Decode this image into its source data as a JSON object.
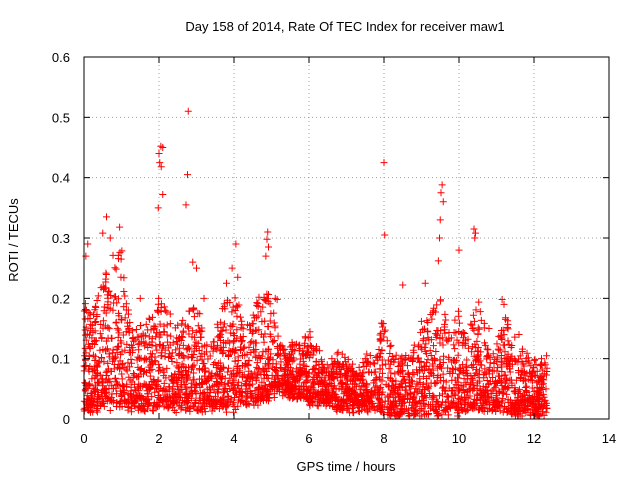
{
  "chart_data": {
    "type": "scatter",
    "title": "Day 158 of 2014, Rate Of TEC Index for receiver maw1",
    "xlabel": "GPS time / hours",
    "ylabel": "ROTI / TECUs",
    "xlim": [
      0,
      14
    ],
    "ylim": [
      0,
      0.6
    ],
    "x_ticks": [
      0,
      2,
      4,
      6,
      8,
      10,
      12,
      14
    ],
    "x_tick_labels": [
      "0",
      "2",
      "4",
      "6",
      "8",
      "10",
      "12",
      "14"
    ],
    "y_ticks": [
      0,
      0.1,
      0.2,
      0.3,
      0.4,
      0.5,
      0.6
    ],
    "y_tick_labels": [
      "0",
      "0.1",
      "0.2",
      "0.3",
      "0.4",
      "0.5",
      "0.6"
    ],
    "grid": true,
    "marker": "plus",
    "color": "#ff0000",
    "x_data_range": [
      0,
      12.35
    ],
    "points": [
      [
        2.78,
        0.51
      ],
      [
        2.0,
        0.44
      ],
      [
        2.05,
        0.452
      ],
      [
        2.1,
        0.45
      ],
      [
        2.02,
        0.425
      ],
      [
        2.06,
        0.418
      ],
      [
        2.76,
        0.405
      ],
      [
        2.72,
        0.355
      ],
      [
        2.1,
        0.372
      ],
      [
        1.98,
        0.35
      ],
      [
        8.0,
        0.425
      ],
      [
        9.55,
        0.388
      ],
      [
        9.52,
        0.375
      ],
      [
        9.58,
        0.36
      ],
      [
        9.5,
        0.33
      ],
      [
        9.48,
        0.3
      ],
      [
        9.45,
        0.262
      ],
      [
        8.02,
        0.305
      ],
      [
        10.4,
        0.315
      ],
      [
        10.44,
        0.308
      ],
      [
        10.42,
        0.3
      ],
      [
        10.0,
        0.28
      ],
      [
        0.6,
        0.335
      ],
      [
        0.95,
        0.318
      ],
      [
        0.5,
        0.308
      ],
      [
        0.7,
        0.3
      ],
      [
        0.1,
        0.29
      ],
      [
        0.05,
        0.27
      ],
      [
        4.05,
        0.29
      ],
      [
        4.9,
        0.31
      ],
      [
        4.88,
        0.298
      ],
      [
        4.92,
        0.285
      ],
      [
        4.85,
        0.27
      ],
      [
        3.95,
        0.25
      ],
      [
        4.1,
        0.235
      ],
      [
        9.1,
        0.225
      ],
      [
        8.5,
        0.222
      ],
      [
        3.8,
        0.225
      ],
      [
        5.1,
        0.2
      ],
      [
        5.15,
        0.198
      ],
      [
        11.15,
        0.198
      ],
      [
        11.2,
        0.19
      ],
      [
        10.8,
        0.15
      ],
      [
        11.6,
        0.14
      ],
      [
        12.2,
        0.1
      ],
      [
        12.3,
        0.09
      ],
      [
        12.32,
        0.05
      ],
      [
        12.25,
        0.02
      ],
      [
        6.8,
        0.09
      ],
      [
        7.5,
        0.1
      ],
      [
        6.2,
        0.12
      ],
      [
        5.5,
        0.08
      ],
      [
        3.2,
        0.2
      ],
      [
        2.9,
        0.26
      ],
      [
        3.0,
        0.25
      ],
      [
        1.5,
        0.2
      ],
      [
        1.2,
        0.15
      ],
      [
        0.3,
        0.16
      ],
      [
        0.15,
        0.12
      ],
      [
        0.02,
        0.06
      ]
    ],
    "density_envelope": {
      "x": [
        0,
        0.25,
        0.5,
        0.75,
        1.0,
        1.25,
        1.5,
        1.75,
        2.0,
        2.25,
        2.5,
        2.75,
        3.0,
        3.25,
        3.5,
        3.75,
        4.0,
        4.25,
        4.5,
        4.75,
        5.0,
        5.25,
        5.5,
        5.75,
        6.0,
        6.25,
        6.5,
        6.75,
        7.0,
        7.25,
        7.5,
        7.75,
        8.0,
        8.25,
        8.5,
        8.75,
        9.0,
        9.25,
        9.5,
        9.75,
        10.0,
        10.25,
        10.5,
        10.75,
        11.0,
        11.25,
        11.5,
        11.75,
        12.0,
        12.35
      ],
      "upper": [
        0.2,
        0.18,
        0.25,
        0.27,
        0.28,
        0.16,
        0.15,
        0.17,
        0.2,
        0.2,
        0.15,
        0.18,
        0.2,
        0.12,
        0.14,
        0.2,
        0.22,
        0.16,
        0.17,
        0.22,
        0.2,
        0.13,
        0.12,
        0.13,
        0.15,
        0.12,
        0.09,
        0.11,
        0.1,
        0.08,
        0.12,
        0.1,
        0.17,
        0.11,
        0.1,
        0.12,
        0.17,
        0.18,
        0.22,
        0.15,
        0.18,
        0.14,
        0.2,
        0.14,
        0.12,
        0.18,
        0.13,
        0.11,
        0.1,
        0.1
      ],
      "lower": [
        0.01,
        0.02,
        0.02,
        0.02,
        0.02,
        0.02,
        0.02,
        0.02,
        0.02,
        0.02,
        0.02,
        0.02,
        0.02,
        0.02,
        0.02,
        0.02,
        0.02,
        0.03,
        0.03,
        0.03,
        0.04,
        0.05,
        0.04,
        0.04,
        0.03,
        0.03,
        0.03,
        0.02,
        0.02,
        0.02,
        0.02,
        0.02,
        0.01,
        0.01,
        0.01,
        0.01,
        0.01,
        0.01,
        0.01,
        0.01,
        0.01,
        0.02,
        0.02,
        0.02,
        0.02,
        0.02,
        0.01,
        0.01,
        0.01,
        0.01
      ]
    }
  }
}
